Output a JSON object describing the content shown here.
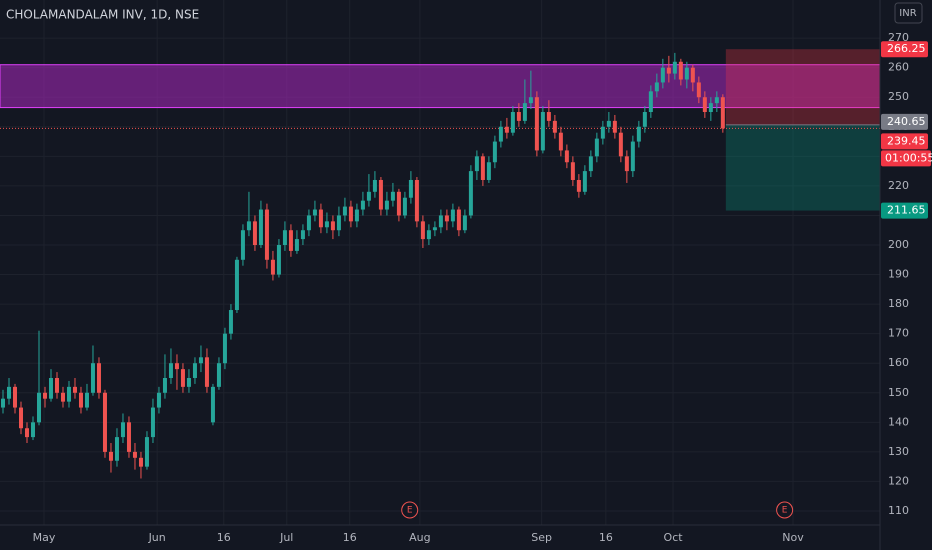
{
  "chart_data": {
    "type": "candlestick",
    "title": "CHOLAMANDALAM INV, 1D, NSE",
    "currency_button": "INR",
    "up_color": "#26a69a",
    "down_color": "#ef5350",
    "open": [
      145,
      148,
      152,
      145,
      138,
      135,
      140,
      150,
      148,
      155,
      150,
      147,
      152,
      150,
      145,
      150,
      160,
      150,
      130,
      127,
      135,
      140,
      130,
      128,
      125,
      135,
      145,
      150,
      155,
      160,
      158,
      152,
      155,
      160,
      162,
      140,
      152,
      160,
      170,
      178,
      195,
      205,
      208,
      200,
      212,
      195,
      190,
      200,
      205,
      198,
      202,
      205,
      210,
      212,
      206,
      208,
      205,
      210,
      213,
      208,
      212,
      215,
      218,
      222,
      212,
      215,
      218,
      210,
      216,
      222,
      208,
      202,
      205,
      206,
      210,
      208,
      212,
      205,
      210,
      225,
      230,
      222,
      228,
      235,
      240,
      238,
      245,
      242,
      248,
      250,
      232,
      245,
      242,
      238,
      232,
      228,
      222,
      218,
      225,
      230,
      236,
      240,
      242,
      238,
      230,
      225,
      235,
      240,
      245,
      252,
      255,
      260,
      258,
      262,
      256,
      260,
      255,
      250,
      245,
      248,
      250
    ],
    "high": [
      151,
      155,
      153,
      147,
      140,
      142,
      171,
      152,
      158,
      157,
      152,
      154,
      155,
      152,
      153,
      166,
      162,
      151,
      133,
      138,
      143,
      142,
      133,
      130,
      137,
      148,
      152,
      163,
      165,
      163,
      160,
      158,
      162,
      166,
      165,
      153,
      162,
      172,
      180,
      196,
      207,
      218,
      210,
      215,
      214,
      198,
      202,
      208,
      207,
      205,
      207,
      212,
      215,
      214,
      211,
      210,
      213,
      216,
      215,
      214,
      218,
      224,
      225,
      223,
      218,
      221,
      219,
      218,
      225,
      223,
      210,
      207,
      208,
      212,
      212,
      214,
      213,
      212,
      227,
      232,
      231,
      230,
      237,
      242,
      243,
      247,
      248,
      256,
      259,
      252,
      247,
      249,
      244,
      240,
      234,
      230,
      224,
      227,
      232,
      238,
      242,
      245,
      244,
      240,
      232,
      237,
      242,
      247,
      254,
      258,
      263,
      264,
      265,
      263,
      262,
      261,
      257,
      252,
      250,
      252,
      251
    ],
    "low": [
      143,
      146,
      143,
      136,
      133,
      134,
      139,
      145,
      147,
      148,
      145,
      145,
      148,
      143,
      144,
      149,
      148,
      128,
      123,
      125,
      133,
      128,
      124,
      121,
      124,
      133,
      143,
      148,
      153,
      151,
      150,
      150,
      153,
      157,
      150,
      139,
      151,
      158,
      168,
      177,
      193,
      203,
      198,
      199,
      192,
      188,
      189,
      198,
      196,
      197,
      200,
      203,
      208,
      204,
      204,
      202,
      203,
      208,
      206,
      206,
      210,
      213,
      216,
      210,
      210,
      213,
      208,
      209,
      214,
      206,
      199,
      200,
      203,
      204,
      205,
      206,
      203,
      204,
      209,
      222,
      220,
      221,
      226,
      233,
      236,
      237,
      240,
      241,
      246,
      230,
      231,
      240,
      236,
      230,
      226,
      220,
      216,
      217,
      223,
      228,
      234,
      238,
      236,
      228,
      221,
      223,
      233,
      238,
      243,
      250,
      253,
      255,
      256,
      254,
      253,
      252,
      248,
      243,
      242,
      245,
      238
    ],
    "close": [
      148,
      152,
      145,
      138,
      135,
      140,
      150,
      148,
      155,
      150,
      147,
      152,
      150,
      145,
      150,
      160,
      150,
      130,
      127,
      135,
      140,
      130,
      128,
      125,
      135,
      145,
      150,
      155,
      160,
      158,
      152,
      155,
      160,
      162,
      152,
      152,
      160,
      170,
      178,
      195,
      205,
      208,
      200,
      212,
      195,
      190,
      200,
      205,
      198,
      202,
      205,
      210,
      212,
      206,
      208,
      205,
      210,
      213,
      208,
      212,
      215,
      218,
      222,
      212,
      215,
      218,
      210,
      216,
      222,
      208,
      202,
      205,
      206,
      210,
      208,
      212,
      205,
      210,
      225,
      230,
      222,
      228,
      235,
      240,
      238,
      245,
      242,
      248,
      250,
      232,
      245,
      242,
      238,
      232,
      228,
      222,
      218,
      225,
      230,
      236,
      240,
      242,
      238,
      230,
      225,
      235,
      240,
      245,
      252,
      255,
      260,
      258,
      262,
      256,
      260,
      255,
      250,
      245,
      248,
      250,
      239.45
    ],
    "xlim": [
      -0.5,
      146.2
    ],
    "ylim": [
      96.8,
      282.9
    ],
    "yticks": [
      110,
      120,
      130,
      140,
      150,
      160,
      170,
      180,
      190,
      200,
      210,
      220,
      230,
      240,
      250,
      260,
      270
    ],
    "xticks": [
      {
        "value": 6.83,
        "label": "May"
      },
      {
        "value": 25.7,
        "label": "Jun"
      },
      {
        "value": 36.8,
        "label": "16"
      },
      {
        "value": 47.3,
        "label": "Jul"
      },
      {
        "value": 57.8,
        "label": "16"
      },
      {
        "value": 69.5,
        "label": "Aug"
      },
      {
        "value": 89.8,
        "label": "Sep"
      },
      {
        "value": 100.5,
        "label": "16"
      },
      {
        "value": 111.7,
        "label": "Oct"
      },
      {
        "value": 131.7,
        "label": "Nov"
      }
    ],
    "grid": true,
    "band": {
      "from": 246.5,
      "to": 261,
      "color": "#9c27b0"
    },
    "position": {
      "start": 120,
      "entry": 240.65,
      "stop": 266.25,
      "target": 211.65
    },
    "countdown": "01:00:55",
    "events": [
      {
        "x": 67.8,
        "label": "E"
      },
      {
        "x": 130.3,
        "label": "E"
      }
    ]
  }
}
